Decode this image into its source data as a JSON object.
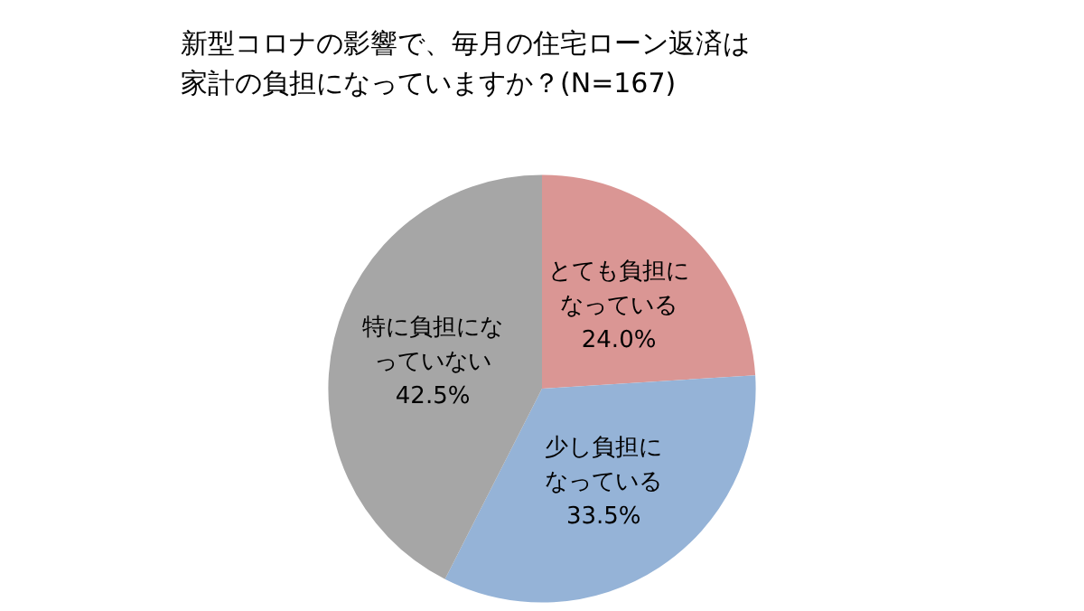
{
  "chart_data": {
    "type": "pie",
    "title": "新型コロナの影響で、毎月の住宅ローン返済は家計の負担になっていますか？(N=167)",
    "categories": [
      "とても負担になっている",
      "少し負担になっている",
      "特に負担になっていない"
    ],
    "values": [
      24.0,
      33.5,
      42.5
    ],
    "value_labels": [
      "24.0%",
      "33.5%",
      "42.5%"
    ],
    "colors": [
      "#da9694",
      "#95b3d7",
      "#a6a6a6"
    ],
    "legend": false
  }
}
